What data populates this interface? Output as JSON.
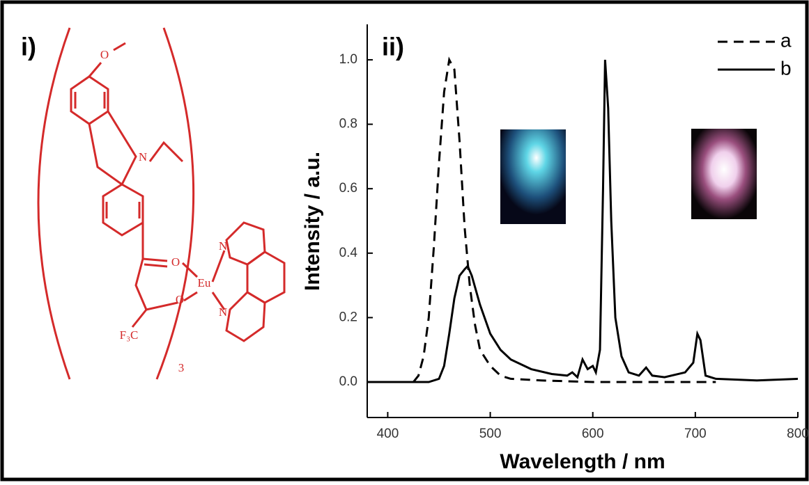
{
  "structure": {
    "label": "i)",
    "atoms": [
      "O",
      "N",
      "O",
      "O",
      "Eu",
      "N",
      "N",
      "F₃C",
      "3"
    ]
  },
  "chart_data": {
    "type": "line",
    "panel_label": "ii)",
    "xlabel": "Wavelength / nm",
    "ylabel": "Intensity / a.u.",
    "xlim": [
      380,
      800
    ],
    "ylim": [
      -0.11,
      1.11
    ],
    "xticks": [
      400,
      500,
      600,
      700,
      800
    ],
    "yticks": [
      {
        "value": 0,
        "label": "0.0"
      },
      0.2,
      0.4,
      0.6,
      0.8,
      {
        "value": 1,
        "label": "1.0"
      }
    ],
    "legend": "top-right",
    "series": [
      {
        "name": "a",
        "color": "#000000",
        "dash": true,
        "x": [
          425,
          430,
          435,
          440,
          445,
          450,
          455,
          460,
          465,
          470,
          475,
          480,
          485,
          490,
          500,
          510,
          520,
          550,
          600,
          720
        ],
        "values": [
          0.0,
          0.02,
          0.08,
          0.2,
          0.42,
          0.68,
          0.9,
          1.0,
          0.97,
          0.75,
          0.48,
          0.3,
          0.18,
          0.1,
          0.05,
          0.02,
          0.01,
          0.005,
          0.0,
          0.0
        ]
      },
      {
        "name": "b",
        "color": "#000000",
        "dash": false,
        "x": [
          380,
          440,
          450,
          455,
          460,
          465,
          470,
          475,
          478,
          482,
          490,
          500,
          510,
          520,
          540,
          560,
          575,
          580,
          585,
          590,
          595,
          600,
          603,
          607,
          610,
          612,
          615,
          618,
          622,
          628,
          635,
          645,
          652,
          658,
          670,
          690,
          698,
          702,
          705,
          710,
          720,
          760,
          800
        ],
        "values": [
          0,
          0,
          0.01,
          0.05,
          0.15,
          0.26,
          0.33,
          0.35,
          0.36,
          0.33,
          0.24,
          0.15,
          0.1,
          0.07,
          0.04,
          0.025,
          0.02,
          0.03,
          0.015,
          0.07,
          0.04,
          0.05,
          0.03,
          0.1,
          0.6,
          1.0,
          0.85,
          0.5,
          0.2,
          0.08,
          0.03,
          0.02,
          0.045,
          0.02,
          0.015,
          0.03,
          0.06,
          0.15,
          0.13,
          0.02,
          0.01,
          0.005,
          0.01
        ]
      }
    ]
  }
}
